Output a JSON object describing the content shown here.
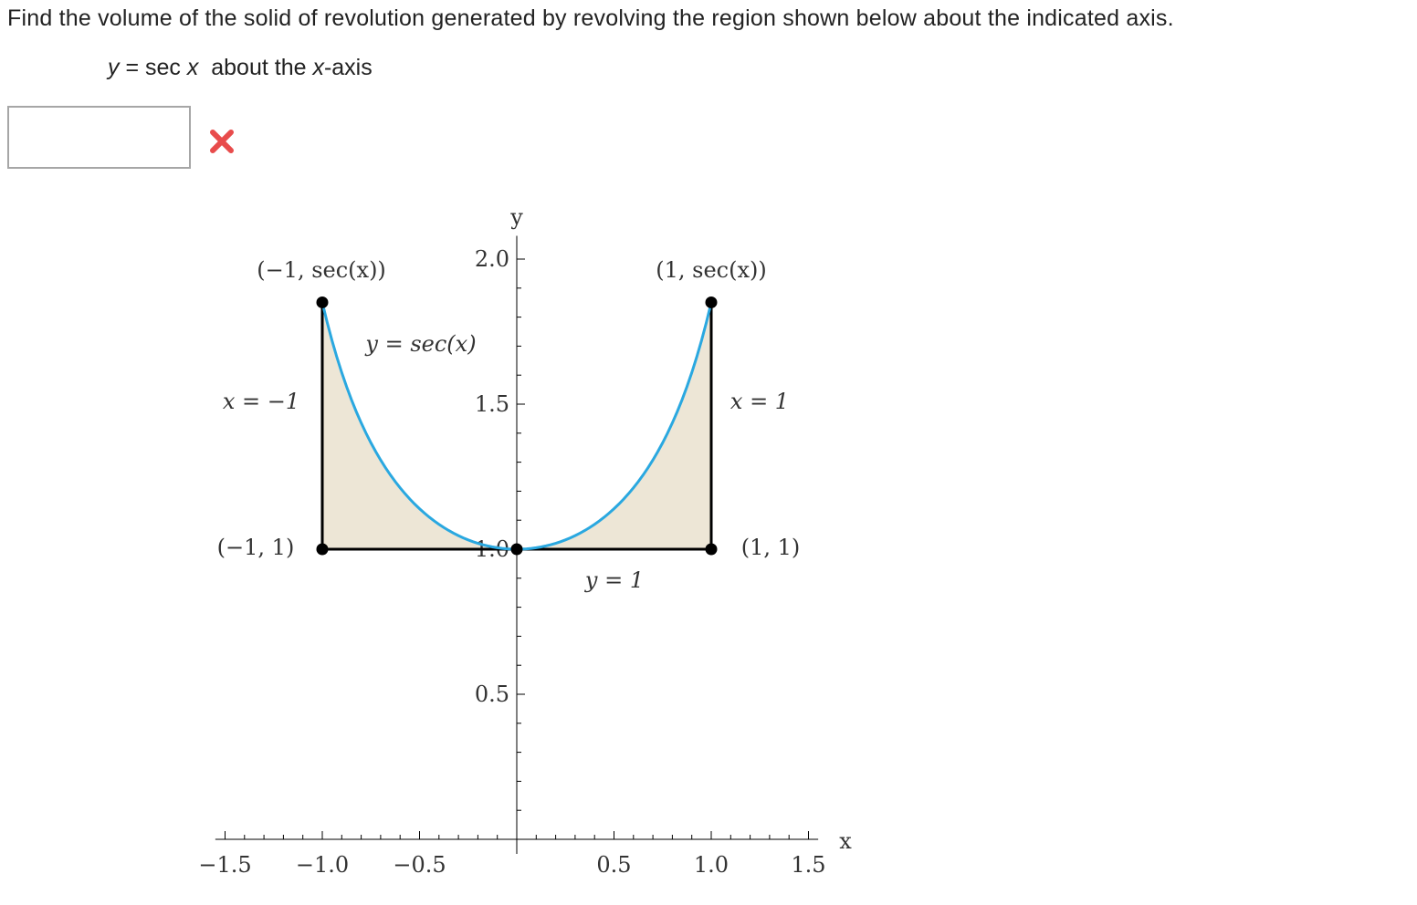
{
  "question": {
    "prompt": "Find the volume of the solid of revolution generated by revolving the region shown below about the indicated axis.",
    "equation_lhs": "y",
    "equation_mid": " = sec ",
    "equation_var": "x",
    "equation_tail": "  about the ",
    "axis_var": "x",
    "axis_suffix": "-axis"
  },
  "answer": {
    "value": "",
    "status": "incorrect",
    "status_icon": "close-icon"
  },
  "colors": {
    "curve": "#2aa8e0",
    "region_fill": "#ede6d6",
    "axis": "#000000",
    "wrong_mark": "#e84c4c"
  },
  "chart_data": {
    "type": "area",
    "function": "y = sec(x)",
    "x": [
      -1.0,
      -0.75,
      -0.5,
      -0.25,
      0.0,
      0.25,
      0.5,
      0.75,
      1.0
    ],
    "y": [
      1.8508,
      1.3667,
      1.1395,
      1.0321,
      1.0,
      1.0321,
      1.1395,
      1.3667,
      1.8508
    ],
    "xlim": [
      -1.55,
      1.55
    ],
    "ylim": [
      0,
      2.08
    ],
    "x_axis_label": "x",
    "y_axis_label": "y",
    "x_ticks": [
      "−1.5",
      "−1.0",
      "−0.5",
      "0.5",
      "1.0",
      "1.5"
    ],
    "x_tick_values": [
      -1.5,
      -1.0,
      -0.5,
      0.5,
      1.0,
      1.5
    ],
    "y_ticks": [
      "0.5",
      "1.0",
      "1.5",
      "2.0"
    ],
    "y_tick_values": [
      0.5,
      1.0,
      1.5,
      2.0
    ],
    "curve_label": "y = sec(x)",
    "boundary_labels": {
      "left": "x = −1",
      "right": "x = 1",
      "bottom": "y = 1"
    },
    "points": [
      {
        "label": "(−1, sec(x))",
        "x": -1.0,
        "y": 1.8508
      },
      {
        "label": "(1, sec(x))",
        "x": 1.0,
        "y": 1.8508
      },
      {
        "label": "(−1, 1)",
        "x": -1.0,
        "y": 1.0
      },
      {
        "label": "(1, 1)",
        "x": 1.0,
        "y": 1.0
      },
      {
        "label": "",
        "x": 0.0,
        "y": 1.0
      }
    ]
  }
}
